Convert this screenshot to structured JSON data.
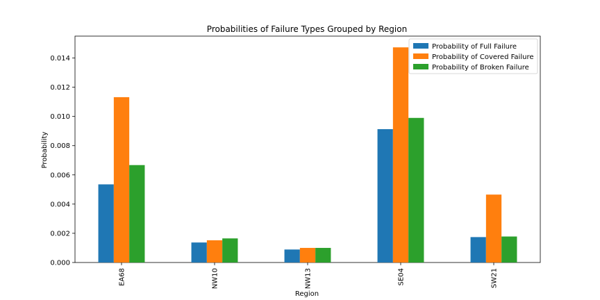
{
  "chart_data": {
    "type": "bar",
    "title": "Probabilities of Failure Types Grouped by Region",
    "xlabel": "Region",
    "ylabel": "Probability",
    "categories": [
      "EA68",
      "NW10",
      "NW13",
      "SE04",
      "SW21"
    ],
    "series": [
      {
        "name": "Probability of Full Failure",
        "color": "#1f77b4",
        "values": [
          0.00535,
          0.00137,
          0.00089,
          0.00913,
          0.00174
        ]
      },
      {
        "name": "Probability of Covered Failure",
        "color": "#ff7f0e",
        "values": [
          0.01132,
          0.00152,
          0.001,
          0.01473,
          0.00465
        ]
      },
      {
        "name": "Probability of Broken Failure",
        "color": "#2ca02c",
        "values": [
          0.00667,
          0.00165,
          0.001,
          0.0099,
          0.00178
        ]
      }
    ],
    "ylim": [
      0,
      0.0155
    ],
    "yticks": [
      "0.000",
      "0.002",
      "0.004",
      "0.006",
      "0.008",
      "0.010",
      "0.012",
      "0.014"
    ],
    "grid": false,
    "legend_position": "top-right"
  }
}
